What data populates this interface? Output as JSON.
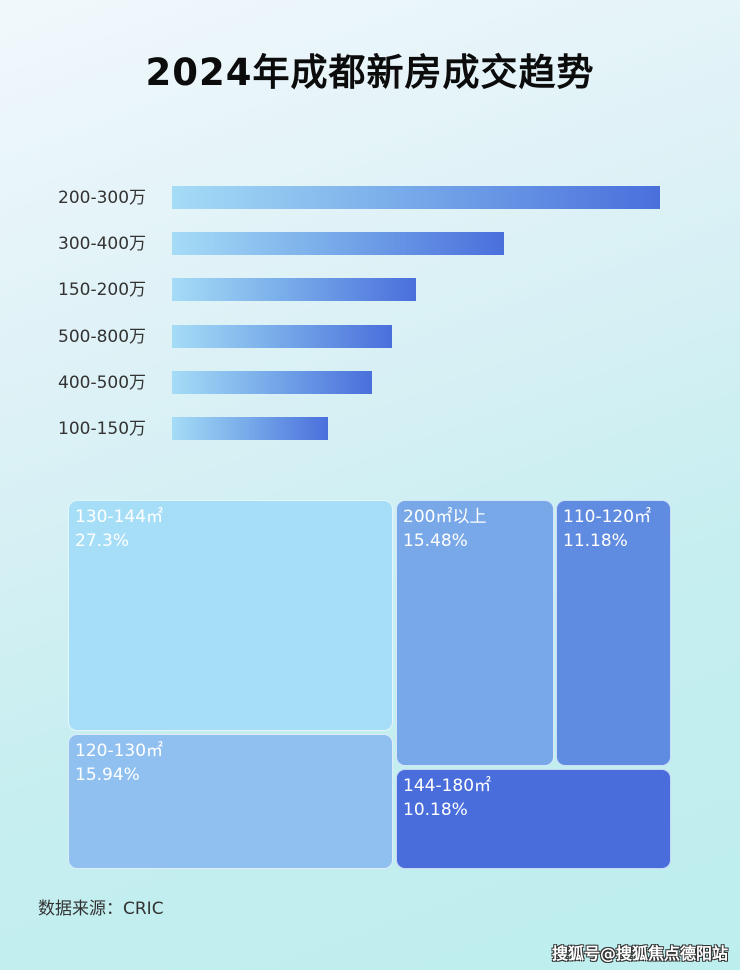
{
  "chart_data": [
    {
      "type": "bar",
      "orientation": "horizontal",
      "title": "2024年成都新房成交趋势",
      "categories": [
        "200-300万",
        "300-400万",
        "150-200万",
        "500-800万",
        "400-500万",
        "100-150万"
      ],
      "values": [
        1.0,
        0.68,
        0.5,
        0.45,
        0.41,
        0.32
      ],
      "value_note": "relative bar length (no axis or data labels shown)",
      "colors": {
        "start": "#a5dcf6",
        "end": "#4a6fdc"
      }
    },
    {
      "type": "treemap",
      "items": [
        {
          "label": "130-144㎡",
          "value": "27.3%",
          "color": "#a6def8"
        },
        {
          "label": "120-130㎡",
          "value": "15.94%",
          "color": "#8fc0f0"
        },
        {
          "label": "200㎡以上",
          "value": "15.48%",
          "color": "#78a8e8"
        },
        {
          "label": "110-120㎡",
          "value": "11.18%",
          "color": "#5f8be0"
        },
        {
          "label": "144-180㎡",
          "value": "10.18%",
          "color": "#4a6ddc"
        }
      ]
    }
  ],
  "source": "数据来源：CRIC",
  "watermark": "搜狐号@搜狐焦点德阳站"
}
